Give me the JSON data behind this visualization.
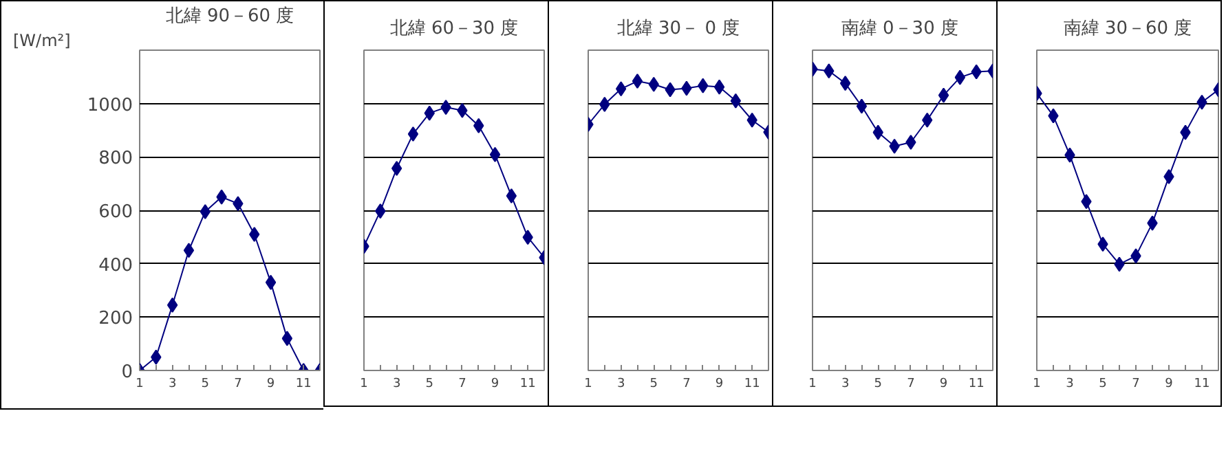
{
  "chart_data": [
    {
      "type": "line",
      "title": "北緯 90－60 度",
      "ylabel": "[W/m²]",
      "x": [
        1,
        2,
        3,
        4,
        5,
        6,
        7,
        8,
        9,
        10,
        11,
        12
      ],
      "color": "#000080",
      "marker": "diamond",
      "line_style": "solid",
      "grid": "y",
      "xlim": [
        1,
        12
      ],
      "ylim": [
        0,
        1200
      ],
      "xticks": [
        1,
        {
          "value": 2,
          "label": null
        },
        3,
        {
          "value": 4,
          "label": null
        },
        5,
        {
          "value": 6,
          "label": null
        },
        7,
        {
          "value": 8,
          "label": null
        },
        9,
        {
          "value": 10,
          "label": null
        },
        11,
        {
          "value": 12,
          "label": null
        }
      ],
      "yticks": [
        0,
        200,
        400,
        600,
        800,
        1000
      ],
      "values": [
        0,
        50,
        245,
        450,
        595,
        650,
        625,
        510,
        330,
        120,
        0,
        0
      ]
    },
    {
      "type": "line",
      "title": "北緯 60－30 度",
      "x": [
        1,
        2,
        3,
        4,
        5,
        6,
        7,
        8,
        9,
        10,
        11,
        12
      ],
      "color": "#000080",
      "marker": "diamond",
      "line_style": "solid",
      "grid": "y",
      "xlim": [
        1,
        12
      ],
      "ylim": [
        0,
        1200
      ],
      "tick_labels": "x",
      "xticks": [
        1,
        {
          "value": 2,
          "label": null
        },
        3,
        {
          "value": 4,
          "label": null
        },
        5,
        {
          "value": 6,
          "label": null
        },
        7,
        {
          "value": 8,
          "label": null
        },
        9,
        {
          "value": 10,
          "label": null
        },
        11,
        {
          "value": 12,
          "label": null
        }
      ],
      "yticks": [
        0,
        200,
        400,
        600,
        800,
        1000
      ],
      "values": [
        465,
        597,
        757,
        886,
        964,
        986,
        974,
        917,
        809,
        654,
        499,
        423
      ]
    },
    {
      "type": "line",
      "title": "北緯 30－ 0 度",
      "x": [
        1,
        2,
        3,
        4,
        5,
        6,
        7,
        8,
        9,
        10,
        11,
        12
      ],
      "color": "#000080",
      "marker": "diamond",
      "line_style": "solid",
      "grid": "y",
      "xlim": [
        1,
        12
      ],
      "ylim": [
        0,
        1200
      ],
      "tick_labels": "x",
      "xticks": [
        1,
        {
          "value": 2,
          "label": null
        },
        3,
        {
          "value": 4,
          "label": null
        },
        5,
        {
          "value": 6,
          "label": null
        },
        7,
        {
          "value": 8,
          "label": null
        },
        9,
        {
          "value": 10,
          "label": null
        },
        11,
        {
          "value": 12,
          "label": null
        }
      ],
      "yticks": [
        0,
        200,
        400,
        600,
        800,
        1000
      ],
      "values": [
        922,
        997,
        1055,
        1084,
        1072,
        1052,
        1057,
        1067,
        1062,
        1010,
        938,
        893
      ]
    },
    {
      "type": "line",
      "title": "南緯  0－30 度",
      "x": [
        1,
        2,
        3,
        4,
        5,
        6,
        7,
        8,
        9,
        10,
        11,
        12
      ],
      "color": "#000080",
      "marker": "diamond",
      "line_style": "solid",
      "grid": "y",
      "xlim": [
        1,
        12
      ],
      "ylim": [
        0,
        1200
      ],
      "tick_labels": "x",
      "xticks": [
        1,
        {
          "value": 2,
          "label": null
        },
        3,
        {
          "value": 4,
          "label": null
        },
        5,
        {
          "value": 6,
          "label": null
        },
        7,
        {
          "value": 8,
          "label": null
        },
        9,
        {
          "value": 10,
          "label": null
        },
        11,
        {
          "value": 12,
          "label": null
        }
      ],
      "yticks": [
        0,
        200,
        400,
        600,
        800,
        1000
      ],
      "values": [
        1129,
        1122,
        1076,
        990,
        892,
        840,
        855,
        938,
        1031,
        1098,
        1119,
        1122
      ]
    },
    {
      "type": "line",
      "title": "南緯 30－60 度",
      "x": [
        1,
        2,
        3,
        4,
        5,
        6,
        7,
        8,
        9,
        10,
        11,
        12
      ],
      "color": "#000080",
      "marker": "diamond",
      "line_style": "solid",
      "grid": "y",
      "xlim": [
        1,
        12
      ],
      "ylim": [
        0,
        1200
      ],
      "tick_labels": "x",
      "xticks": [
        1,
        {
          "value": 2,
          "label": null
        },
        3,
        {
          "value": 4,
          "label": null
        },
        5,
        {
          "value": 6,
          "label": null
        },
        7,
        {
          "value": 8,
          "label": null
        },
        9,
        {
          "value": 10,
          "label": null
        },
        11,
        {
          "value": 12,
          "label": null
        }
      ],
      "yticks": [
        0,
        200,
        400,
        600,
        800,
        1000
      ],
      "values": [
        1038,
        954,
        807,
        633,
        473,
        398,
        429,
        552,
        726,
        892,
        1005,
        1052
      ]
    }
  ]
}
